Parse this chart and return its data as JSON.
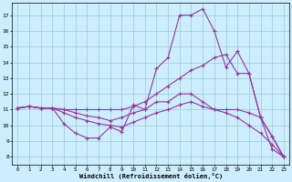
{
  "xlabel": "Windchill (Refroidissement éolien,°C)",
  "bg_color": "#cceeff",
  "line_color": "#993399",
  "grid_color": "#99cccc",
  "xlim": [
    -0.5,
    23.5
  ],
  "ylim": [
    7.5,
    17.8
  ],
  "yticks": [
    8,
    9,
    10,
    11,
    12,
    13,
    14,
    15,
    16,
    17
  ],
  "xticks": [
    0,
    1,
    2,
    3,
    4,
    5,
    6,
    7,
    8,
    9,
    10,
    11,
    12,
    13,
    14,
    15,
    16,
    17,
    18,
    19,
    20,
    21,
    22,
    23
  ],
  "series": [
    {
      "x": [
        0,
        1,
        2,
        3,
        4,
        5,
        6,
        7,
        8,
        9,
        10,
        11,
        12,
        13,
        14,
        15,
        16,
        17,
        18,
        19,
        20,
        21,
        22,
        23
      ],
      "y": [
        11.1,
        11.2,
        11.1,
        11.1,
        10.1,
        9.5,
        9.2,
        9.2,
        9.9,
        9.6,
        11.3,
        11.0,
        13.6,
        14.3,
        17.0,
        17.0,
        17.4,
        16.0,
        13.7,
        14.7,
        13.3,
        10.5,
        8.5,
        8.0
      ]
    },
    {
      "x": [
        0,
        1,
        2,
        3,
        4,
        5,
        6,
        7,
        8,
        9,
        10,
        11,
        12,
        13,
        14,
        15,
        16,
        17,
        18,
        19,
        20,
        21,
        22,
        23
      ],
      "y": [
        11.1,
        11.2,
        11.1,
        11.1,
        11.0,
        11.0,
        11.0,
        11.0,
        11.0,
        11.0,
        11.2,
        11.5,
        12.0,
        12.5,
        13.0,
        13.5,
        13.8,
        14.3,
        14.5,
        13.3,
        13.3,
        10.5,
        9.3,
        8.0
      ]
    },
    {
      "x": [
        0,
        1,
        2,
        3,
        4,
        5,
        6,
        7,
        8,
        9,
        10,
        11,
        12,
        13,
        14,
        15,
        16,
        17,
        18,
        19,
        20,
        21,
        22,
        23
      ],
      "y": [
        11.1,
        11.2,
        11.1,
        11.1,
        11.0,
        10.8,
        10.6,
        10.5,
        10.3,
        10.5,
        10.8,
        11.0,
        11.5,
        11.5,
        12.0,
        12.0,
        11.5,
        11.0,
        11.0,
        11.0,
        10.8,
        10.5,
        9.3,
        8.0
      ]
    },
    {
      "x": [
        0,
        1,
        2,
        3,
        4,
        5,
        6,
        7,
        8,
        9,
        10,
        11,
        12,
        13,
        14,
        15,
        16,
        17,
        18,
        19,
        20,
        21,
        22,
        23
      ],
      "y": [
        11.1,
        11.2,
        11.1,
        11.1,
        10.8,
        10.5,
        10.3,
        10.1,
        10.0,
        9.9,
        10.2,
        10.5,
        10.8,
        11.0,
        11.3,
        11.5,
        11.2,
        11.0,
        10.8,
        10.5,
        10.0,
        9.5,
        8.8,
        8.0
      ]
    }
  ]
}
